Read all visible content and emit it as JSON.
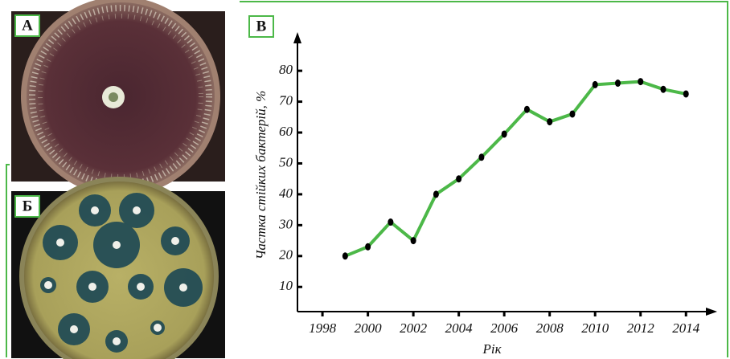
{
  "panels": [
    "А",
    "Б"
  ],
  "chart_data": {
    "type": "line",
    "annotations": [
      "В"
    ],
    "xlabel": "Рік",
    "ylabel": "Частка стійких бактерій, %",
    "x": [
      1999,
      2000,
      2001,
      2002,
      2003,
      2004,
      2005,
      2006,
      2007,
      2008,
      2009,
      2010,
      2011,
      2012,
      2013,
      2014
    ],
    "series": [
      {
        "color": "#4cb848",
        "values": [
          20,
          23,
          31,
          25,
          40,
          45,
          52,
          59.5,
          67.5,
          63.5,
          66,
          75.5,
          76,
          76.5,
          74,
          72.5
        ]
      }
    ],
    "xlim": [
      1996.9,
      2015.3
    ],
    "xticks": [
      1998,
      2000,
      2002,
      2004,
      2006,
      2008,
      2010,
      2012,
      2014
    ],
    "ylim": [
      2,
      92
    ],
    "yticks": [
      10,
      20,
      30,
      40,
      50,
      60,
      70,
      80
    ]
  }
}
